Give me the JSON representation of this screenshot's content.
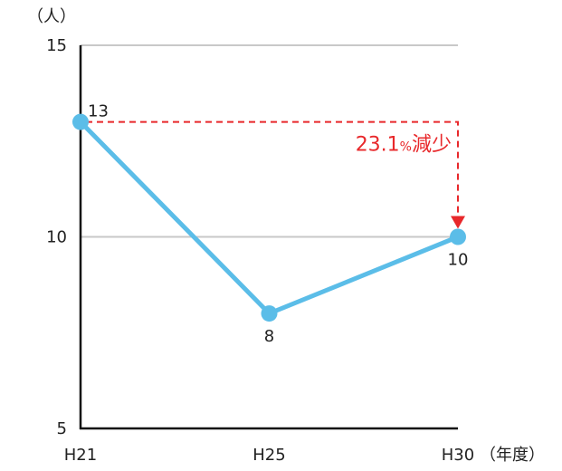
{
  "chart_data": {
    "type": "line",
    "categories": [
      "H21",
      "H25",
      "H30"
    ],
    "series": [
      {
        "values": [
          13,
          8,
          10
        ]
      }
    ],
    "data_labels": [
      "13",
      "8",
      "10"
    ],
    "ylabel": "（人）",
    "xlabel": "（年度）",
    "ylim": [
      5,
      15
    ],
    "yticks": [
      "5",
      "10",
      "15"
    ],
    "grid": true,
    "line_color": "#5bbde8",
    "annotation": {
      "value": "23.1",
      "unit": "%",
      "text": "減少",
      "color": "#e8282b"
    }
  }
}
